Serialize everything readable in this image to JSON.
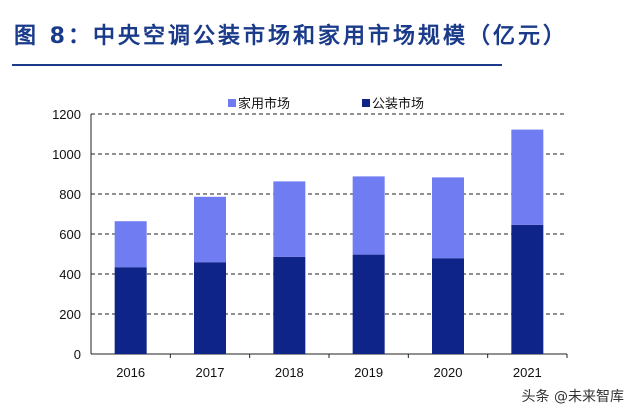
{
  "title": "图 8：中央空调公装市场和家用市场规模（亿元）",
  "watermark": "头条 @未来智库",
  "chart_data": {
    "type": "bar",
    "stacked": true,
    "categories": [
      "2016",
      "2017",
      "2018",
      "2019",
      "2020",
      "2021"
    ],
    "series": [
      {
        "name": "公装市场",
        "color": "#0f2488",
        "values": [
          434,
          459,
          486,
          497,
          479,
          646
        ]
      },
      {
        "name": "家用市场",
        "color": "#6f7cf2",
        "values": [
          230,
          327,
          377,
          391,
          404,
          476
        ]
      }
    ],
    "legend_order": [
      "家用市场",
      "公装市场"
    ],
    "ylim": [
      0,
      1200
    ],
    "yticks": [
      0,
      200,
      400,
      600,
      800,
      1000,
      1200
    ],
    "grid": "horizontal dashed",
    "legend_position": "top"
  }
}
